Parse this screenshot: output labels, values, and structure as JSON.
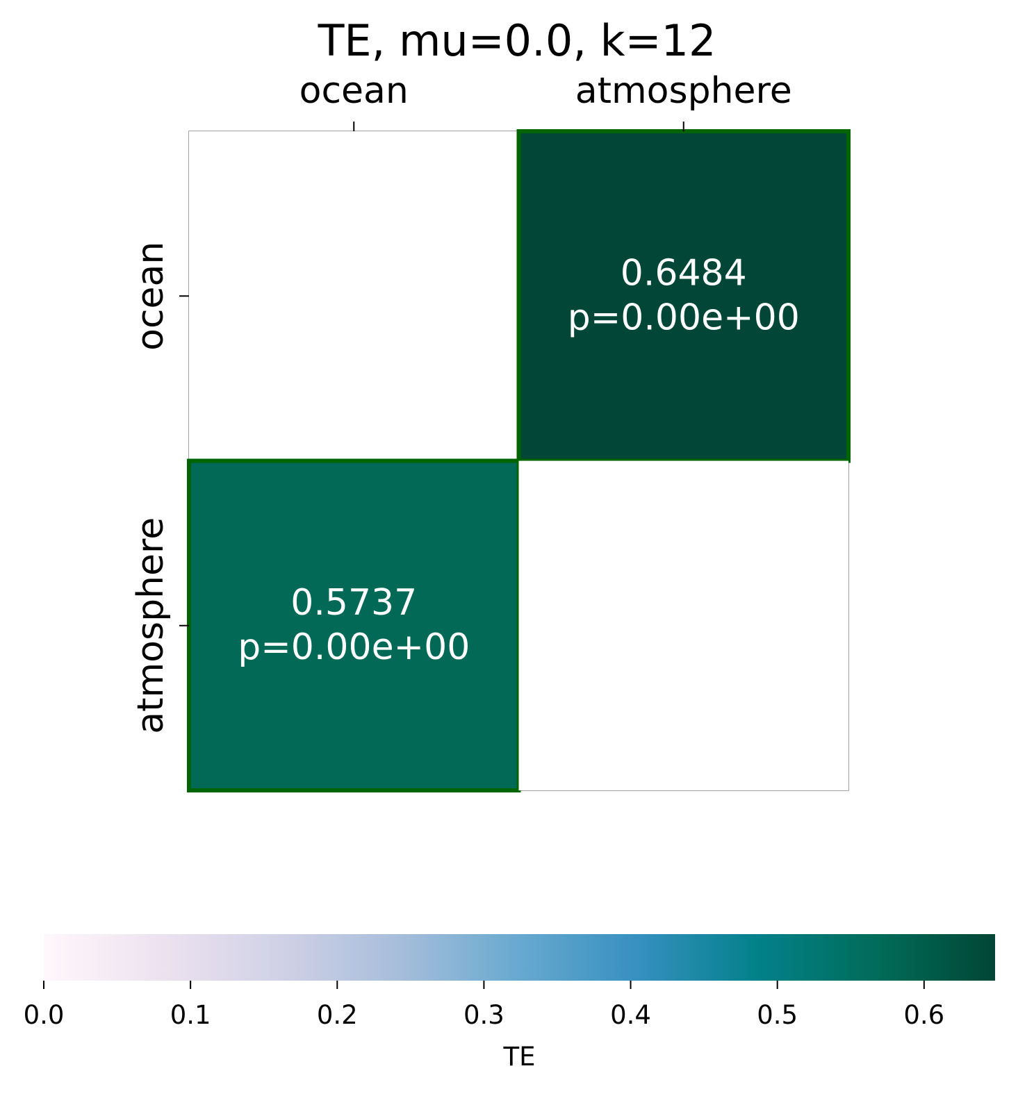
{
  "chart_data": {
    "type": "heatmap",
    "title": "TE, mu=0.0, k=12",
    "x_categories": [
      "ocean",
      "atmosphere"
    ],
    "y_categories": [
      "ocean",
      "atmosphere"
    ],
    "x_axis_position": "top",
    "cells": [
      {
        "row": 0,
        "col": 0,
        "value": null,
        "label": "",
        "p_label": ""
      },
      {
        "row": 0,
        "col": 1,
        "value": 0.6484,
        "label": "0.6484",
        "p_label": "p=0.00e+00",
        "highlighted": true
      },
      {
        "row": 1,
        "col": 0,
        "value": 0.5737,
        "label": "0.5737",
        "p_label": "p=0.00e+00",
        "highlighted": true
      },
      {
        "row": 1,
        "col": 1,
        "value": null,
        "label": "",
        "p_label": ""
      }
    ],
    "colorbar": {
      "label": "TE",
      "orientation": "horizontal",
      "placement": "bottom",
      "range": [
        0.0,
        0.6484
      ],
      "ticks": [
        0.0,
        0.1,
        0.2,
        0.3,
        0.4,
        0.5,
        0.6
      ],
      "tick_labels": [
        "0.0",
        "0.1",
        "0.2",
        "0.3",
        "0.4",
        "0.5",
        "0.6"
      ],
      "colormap": "PuBuGn"
    },
    "colors": {
      "highlight_border": "#006400",
      "frame": "#808080",
      "text_on_dark": "#ffffff",
      "colormap_stops": [
        "#fff7fb",
        "#ece2f0",
        "#d0d1e6",
        "#a6bddb",
        "#67a9cf",
        "#3690c0",
        "#02818a",
        "#016c59",
        "#014636"
      ]
    }
  }
}
